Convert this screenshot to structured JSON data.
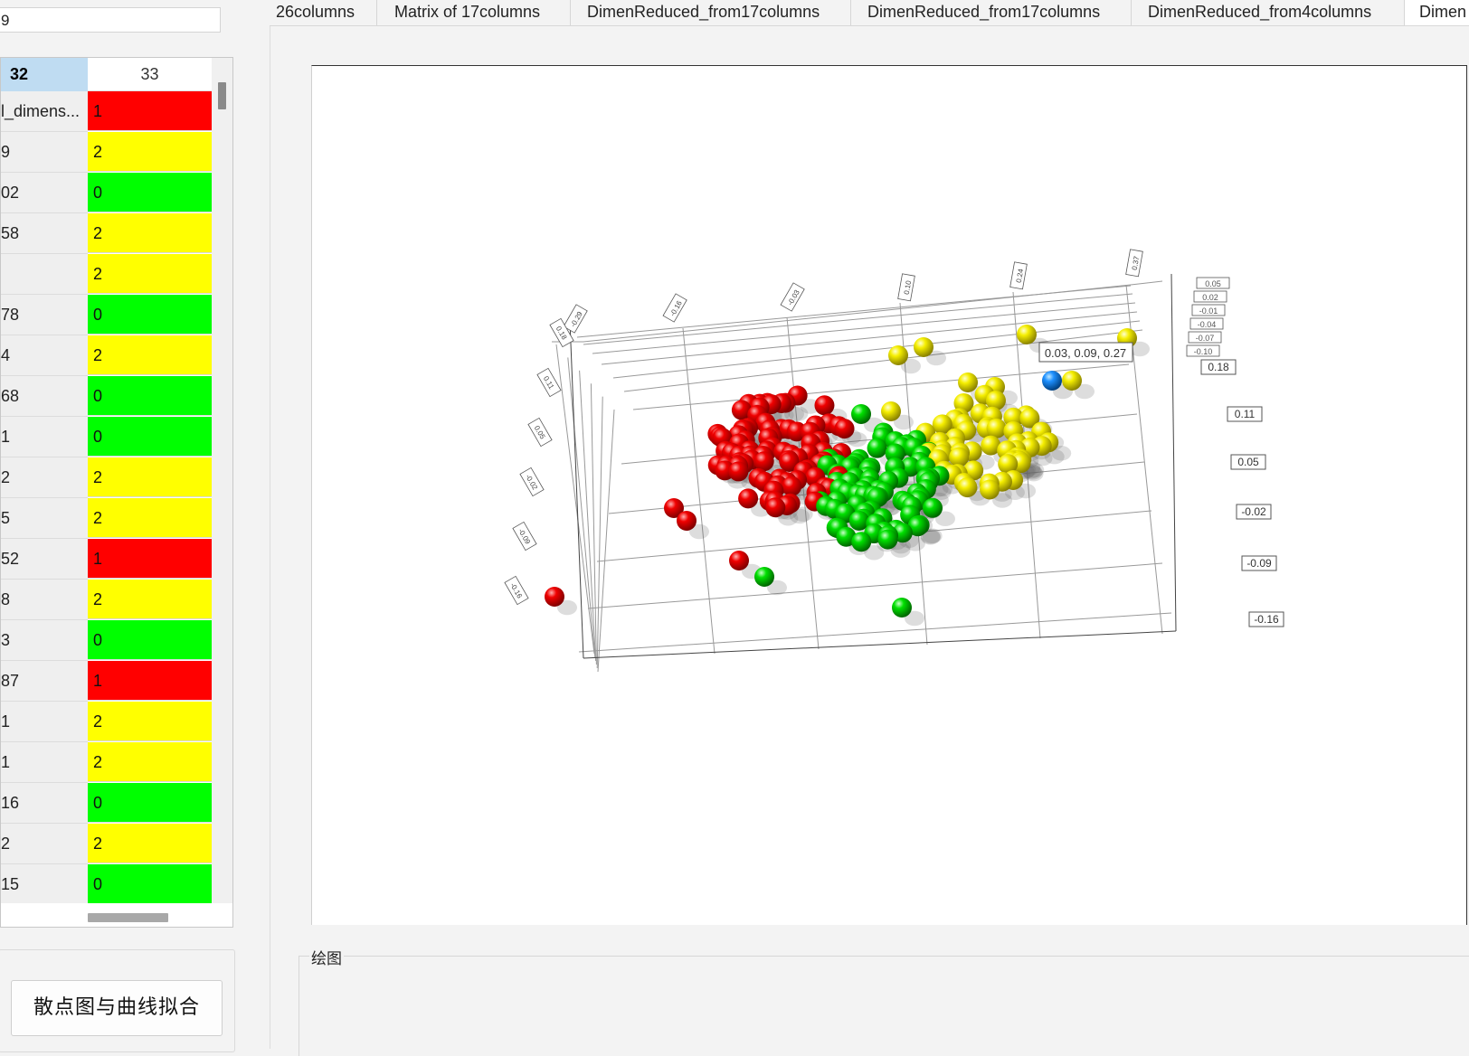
{
  "left": {
    "top_field_value": "9",
    "table": {
      "headers": [
        "32",
        "33"
      ],
      "rows": [
        {
          "a": "l_dimens...",
          "b": "1",
          "c": "#ff0000"
        },
        {
          "a": "9",
          "b": "2",
          "c": "#ffff00"
        },
        {
          "a": "02",
          "b": "0",
          "c": "#00ff00"
        },
        {
          "a": "58",
          "b": "2",
          "c": "#ffff00"
        },
        {
          "a": "",
          "b": "2",
          "c": "#ffff00"
        },
        {
          "a": "78",
          "b": "0",
          "c": "#00ff00"
        },
        {
          "a": "4",
          "b": "2",
          "c": "#ffff00"
        },
        {
          "a": "68",
          "b": "0",
          "c": "#00ff00"
        },
        {
          "a": "1",
          "b": "0",
          "c": "#00ff00"
        },
        {
          "a": "2",
          "b": "2",
          "c": "#ffff00"
        },
        {
          "a": "5",
          "b": "2",
          "c": "#ffff00"
        },
        {
          "a": "52",
          "b": "1",
          "c": "#ff0000"
        },
        {
          "a": "8",
          "b": "2",
          "c": "#ffff00"
        },
        {
          "a": "3",
          "b": "0",
          "c": "#00ff00"
        },
        {
          "a": "87",
          "b": "1",
          "c": "#ff0000"
        },
        {
          "a": "1",
          "b": "2",
          "c": "#ffff00"
        },
        {
          "a": "1",
          "b": "2",
          "c": "#ffff00"
        },
        {
          "a": "16",
          "b": "0",
          "c": "#00ff00"
        },
        {
          "a": "2",
          "b": "2",
          "c": "#ffff00"
        },
        {
          "a": "15",
          "b": "0",
          "c": "#00ff00"
        }
      ]
    },
    "scatter_button_label": "散点图与曲线拟合"
  },
  "tabs": [
    {
      "label": "26columns"
    },
    {
      "label": "Matrix of 17columns"
    },
    {
      "label": "DimenReduced_from17columns"
    },
    {
      "label": "DimenReduced_from17columns"
    },
    {
      "label": "DimenReduced_from4columns"
    },
    {
      "label": "Dimen"
    }
  ],
  "plot": {
    "tooltip": "0.03, 0.09, 0.27",
    "x_ticks": [
      "-0.29",
      "-0.16",
      "-0.03",
      "0.10",
      "0.24",
      "0.37"
    ],
    "y_ticks": [
      "0.05",
      "0.02",
      "-0.01",
      "-0.04",
      "-0.07",
      "-0.10"
    ],
    "z_ticks_right": [
      "0.18",
      "0.11",
      "0.05",
      "-0.02",
      "-0.09",
      "-0.16"
    ],
    "z_ticks_left": [
      "0.18",
      "0.11",
      "0.05",
      "-0.02",
      "-0.09",
      "-0.16"
    ],
    "colors": {
      "cluster_0": "#00d000",
      "cluster_1": "#e00000",
      "cluster_2": "#f2ea00",
      "selected": "#1e90ff"
    }
  },
  "draw_group_label": "绘图"
}
